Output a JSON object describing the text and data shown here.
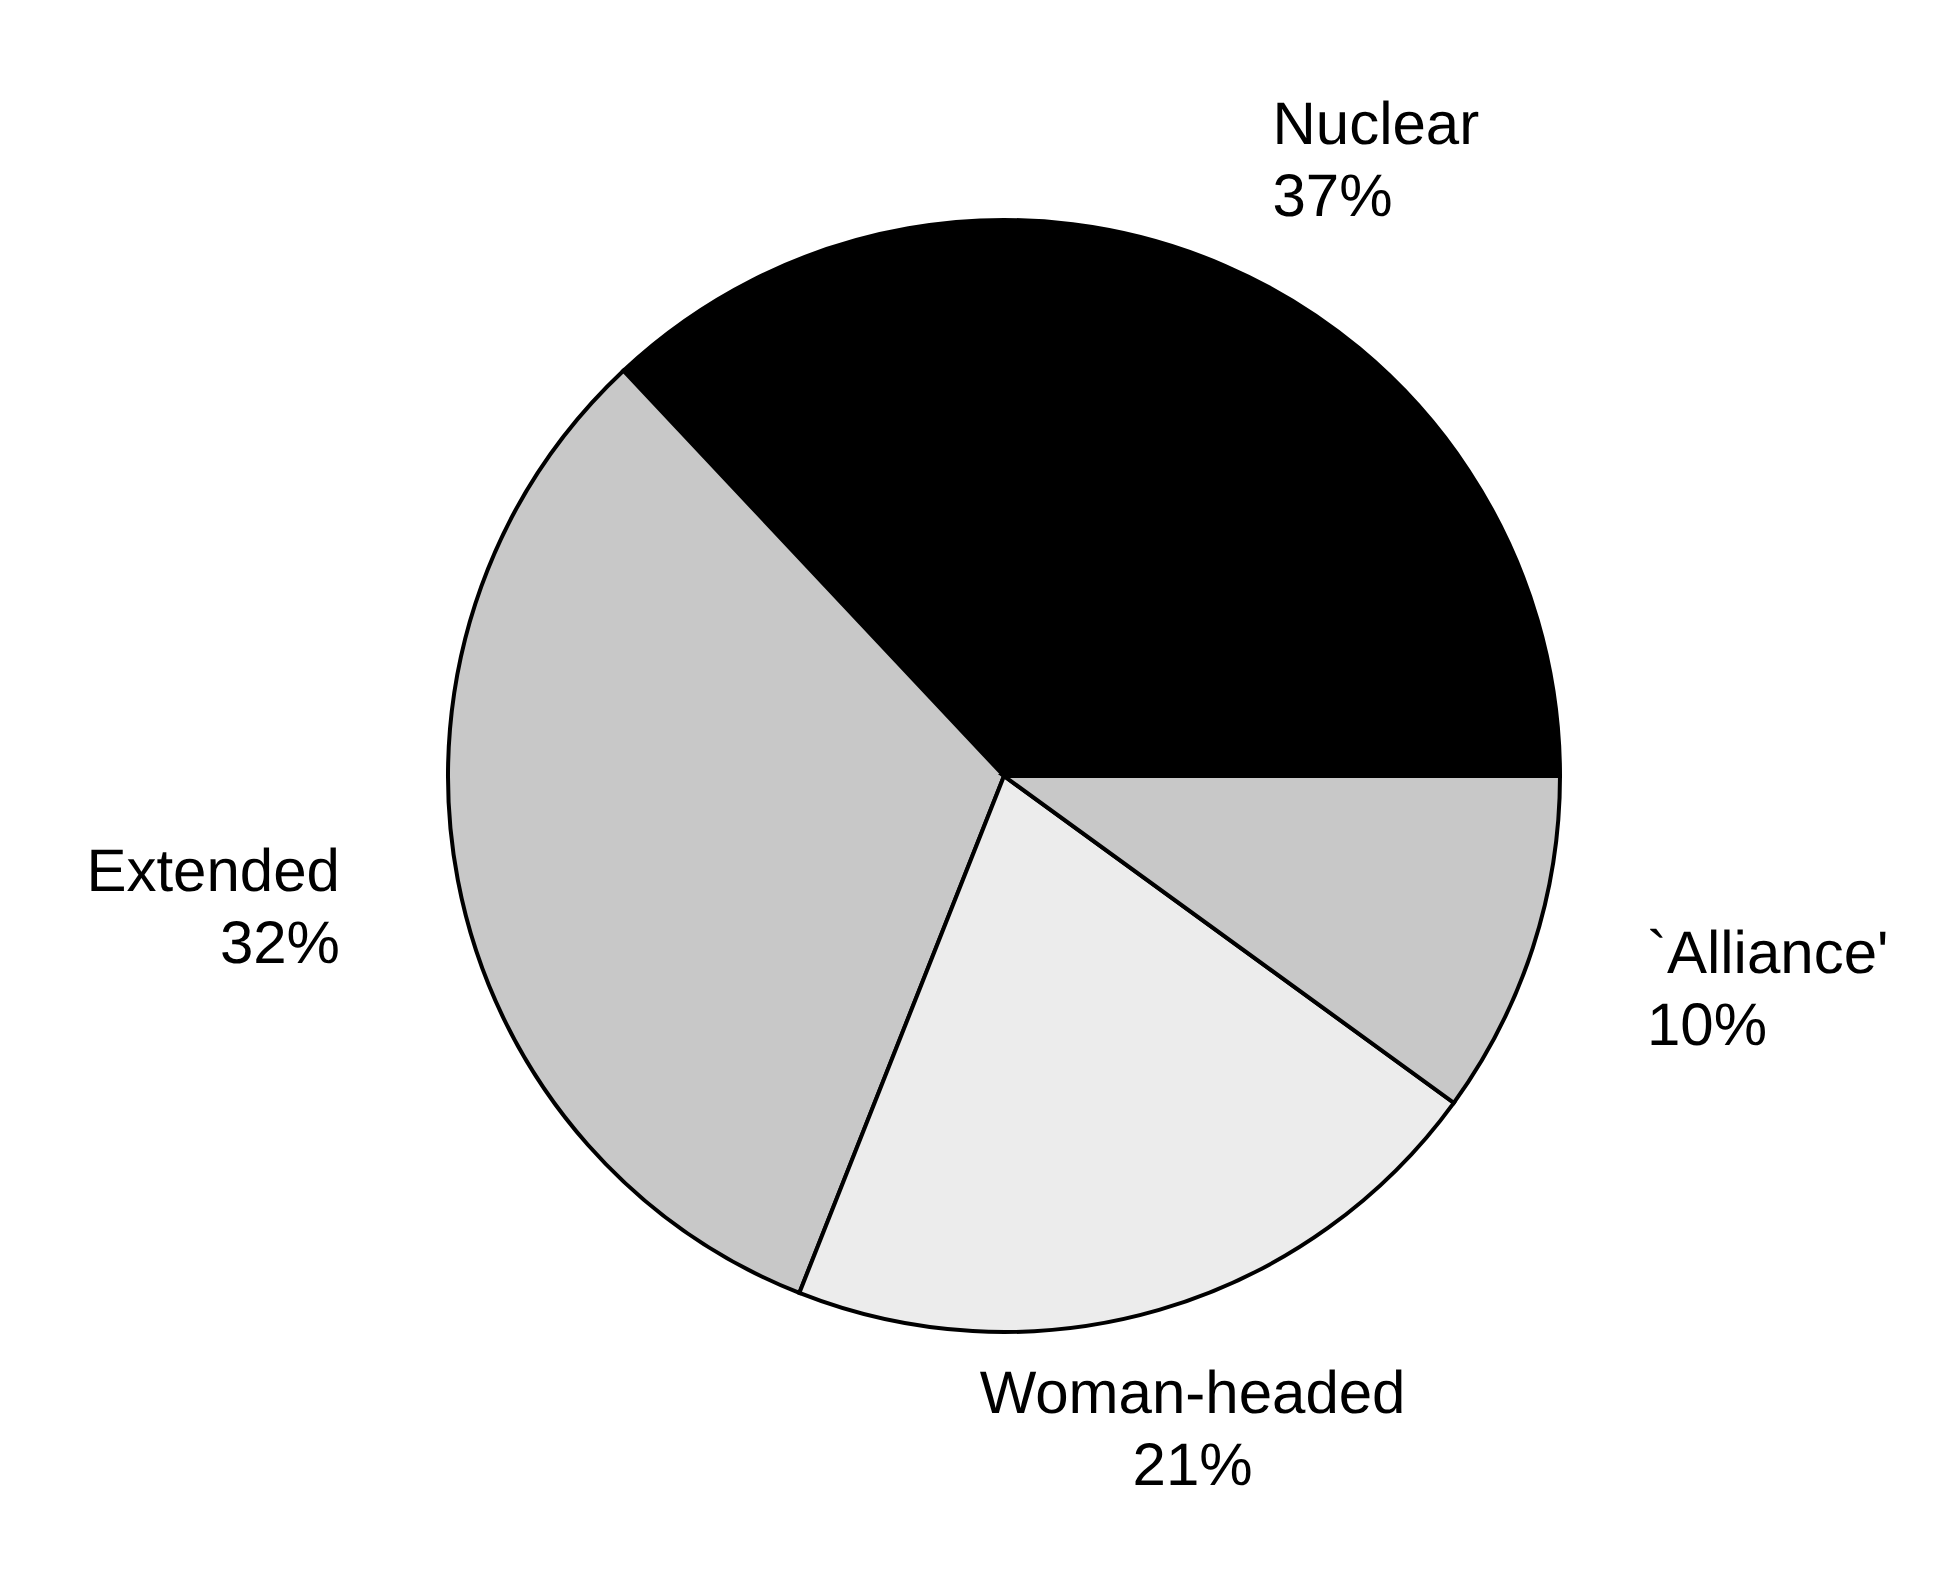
{
  "chart_data": {
    "type": "pie",
    "categories": [
      "Nuclear",
      "Extended",
      "Woman-headed",
      "`Alliance'"
    ],
    "values": [
      37,
      32,
      21,
      10
    ],
    "colors": [
      "#000000",
      "#c8c8c8",
      "#ececec",
      "#c8c8c8"
    ],
    "value_labels": [
      "37%",
      "32%",
      "21%",
      "10%"
    ],
    "legend": false
  }
}
